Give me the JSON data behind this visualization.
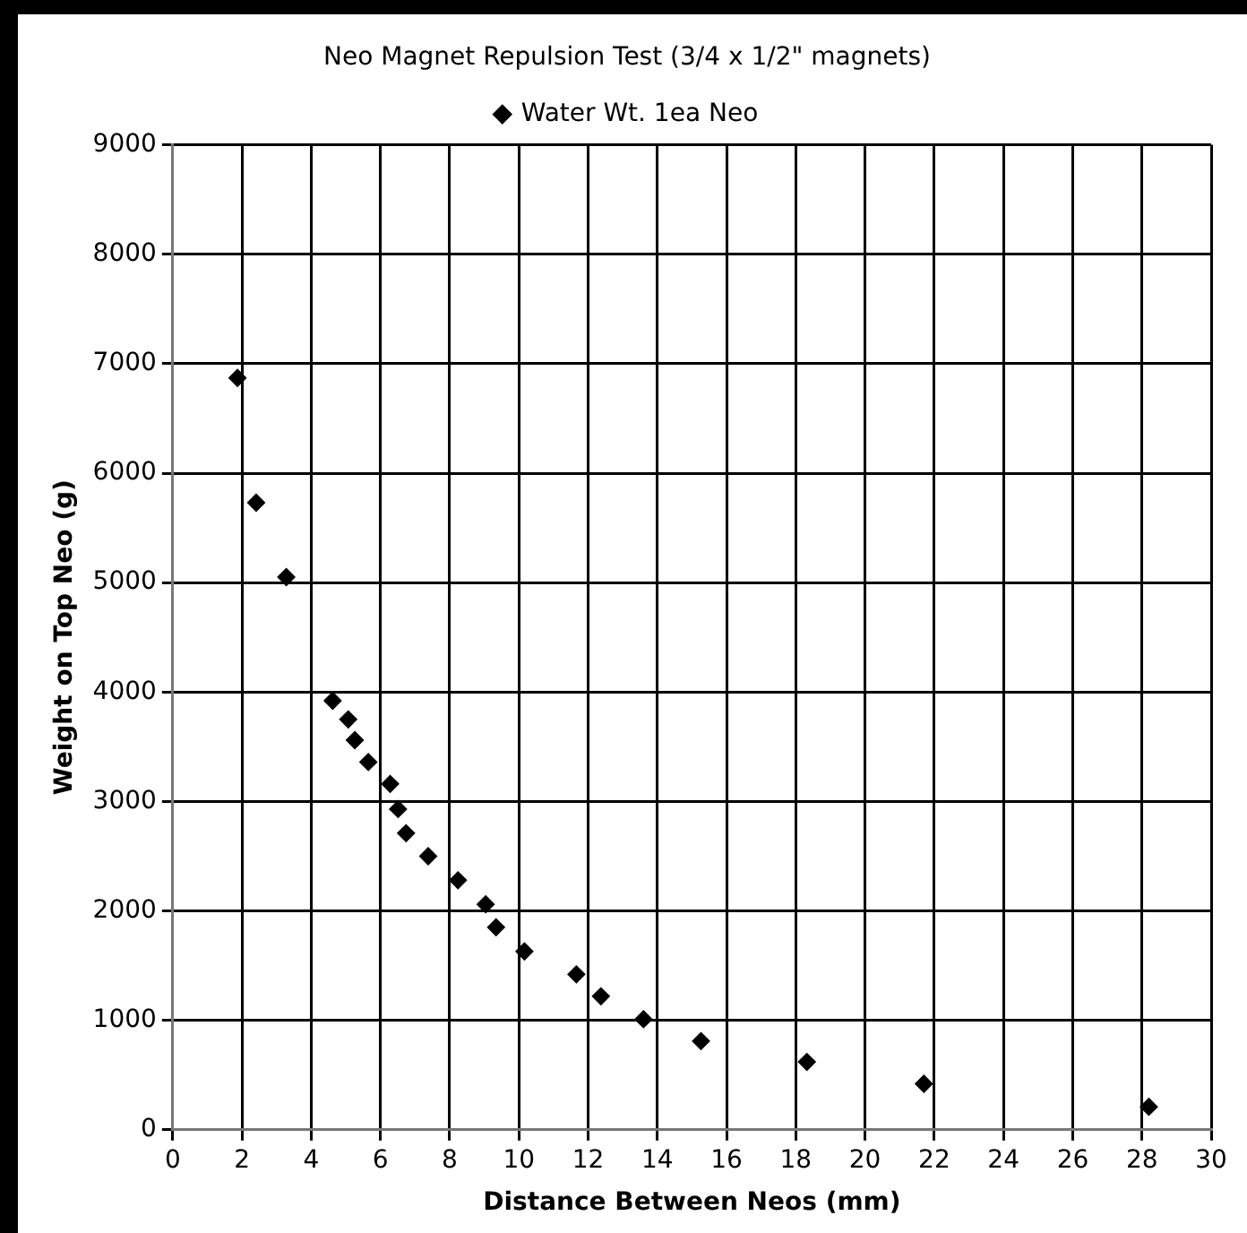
{
  "chart_data": {
    "type": "scatter",
    "title": "Neo Magnet Repulsion Test (3/4 x 1/2\" magnets)",
    "xlabel": "Distance Between Neos (mm)",
    "ylabel": "Weight on Top Neo (g)",
    "series": [
      {
        "name": "Water Wt. 1ea Neo",
        "color": "#000000",
        "x": [
          1.87,
          2.41,
          3.28,
          4.62,
          5.07,
          5.26,
          5.65,
          6.28,
          6.51,
          6.74,
          7.38,
          8.24,
          9.04,
          9.34,
          10.16,
          11.66,
          12.37,
          13.6,
          15.26,
          18.32,
          21.7,
          28.2
        ],
        "values": [
          6870,
          5730,
          5050,
          3920,
          3750,
          3560,
          3360,
          3160,
          2930,
          2710,
          2500,
          2280,
          2060,
          1850,
          1630,
          1420,
          1220,
          1010,
          810,
          620,
          420,
          210
        ]
      }
    ],
    "xlim": [
      0,
      30
    ],
    "xticks": [
      0,
      2,
      4,
      6,
      8,
      10,
      12,
      14,
      16,
      18,
      20,
      22,
      24,
      26,
      28,
      30
    ],
    "ylim": [
      0,
      9000
    ],
    "yticks": [
      0,
      1000,
      2000,
      3000,
      4000,
      5000,
      6000,
      7000,
      8000,
      9000
    ],
    "grid": true,
    "legend": "top",
    "marker": "diamond"
  }
}
